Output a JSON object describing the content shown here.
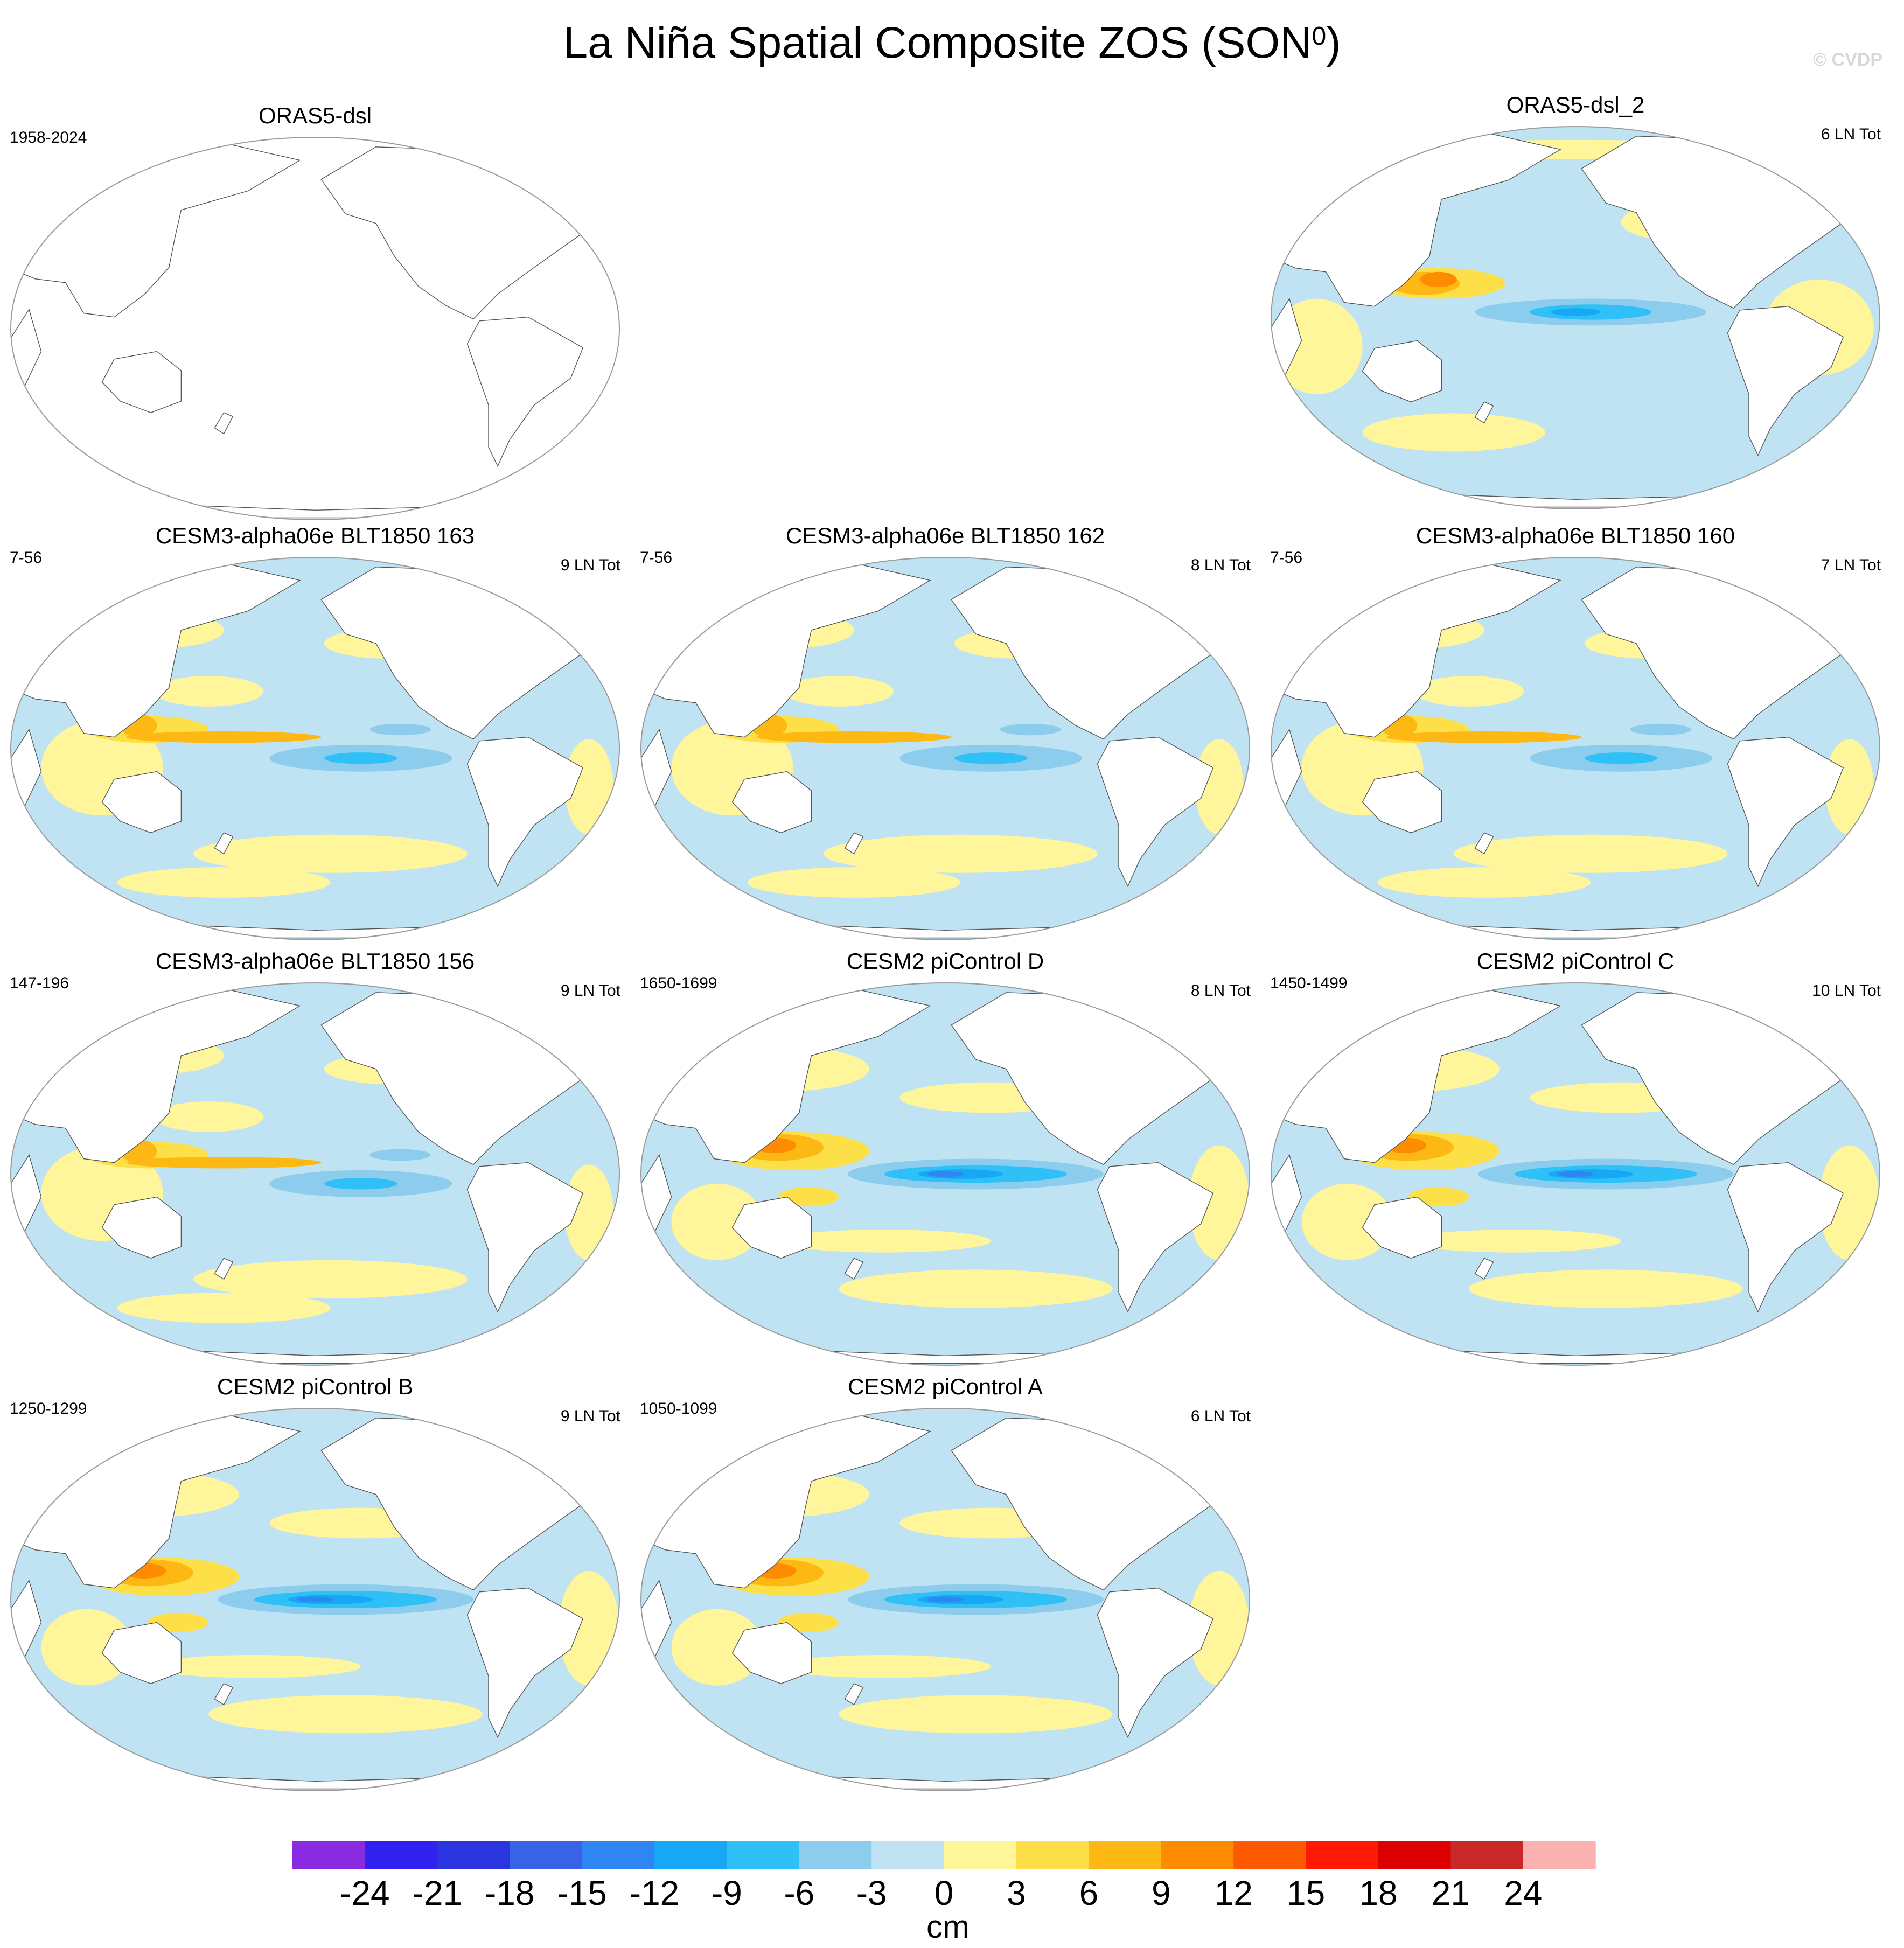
{
  "chart_data": {
    "type": "map-panels",
    "title_main": "La Niña Spatial Composite ZOS (SON",
    "title_sup": "0",
    "title_close": ")",
    "watermark": "© CVDP",
    "colorbar": {
      "units": "cm",
      "levels": [
        -24,
        -21,
        -18,
        -15,
        -12,
        -9,
        -6,
        -3,
        0,
        3,
        6,
        9,
        12,
        15,
        18,
        21,
        24
      ],
      "labels": [
        "-24",
        "-21",
        "-18",
        "-15",
        "-12",
        "-9",
        "-6",
        "-3",
        "0",
        "3",
        "6",
        "9",
        "12",
        "15",
        "18",
        "21",
        "24"
      ],
      "colors": [
        "#8a2be2",
        "#2f22f0",
        "#2a35e0",
        "#3a62e6",
        "#2f85f2",
        "#17a8f5",
        "#2ec0f6",
        "#8ccdee",
        "#bfe3f2",
        "#fff59a",
        "#fde047",
        "#fdb813",
        "#fd8c00",
        "#fd5a00",
        "#fd1a00",
        "#dc0000",
        "#c82828",
        "#fdb2b2"
      ]
    },
    "panels": [
      {
        "title": "ORAS5-dsl",
        "years": "1958-2024",
        "count": "",
        "pattern": "empty"
      },
      {
        "title": "ORAS5-dsl_2",
        "years": "",
        "count": "6 LN Tot",
        "pattern": "obs"
      },
      {
        "title": "CESM3-alpha06e BLT1850 163",
        "years": "7-56",
        "count": "9 LN Tot",
        "pattern": "weak"
      },
      {
        "title": "CESM3-alpha06e BLT1850 162",
        "years": "7-56",
        "count": "8 LN Tot",
        "pattern": "weak"
      },
      {
        "title": "CESM3-alpha06e BLT1850 160",
        "years": "7-56",
        "count": "7 LN Tot",
        "pattern": "weak"
      },
      {
        "title": "CESM3-alpha06e BLT1850 156",
        "years": "147-196",
        "count": "9 LN Tot",
        "pattern": "weak"
      },
      {
        "title": "CESM2 piControl D",
        "years": "1650-1699",
        "count": "8 LN Tot",
        "pattern": "strong"
      },
      {
        "title": "CESM2 piControl C",
        "years": "1450-1499",
        "count": "10 LN Tot",
        "pattern": "strong"
      },
      {
        "title": "CESM2 piControl B",
        "years": "1250-1299",
        "count": "9 LN Tot",
        "pattern": "strong"
      },
      {
        "title": "CESM2 piControl A",
        "years": "1050-1099",
        "count": "6 LN Tot",
        "pattern": "strong"
      }
    ]
  }
}
